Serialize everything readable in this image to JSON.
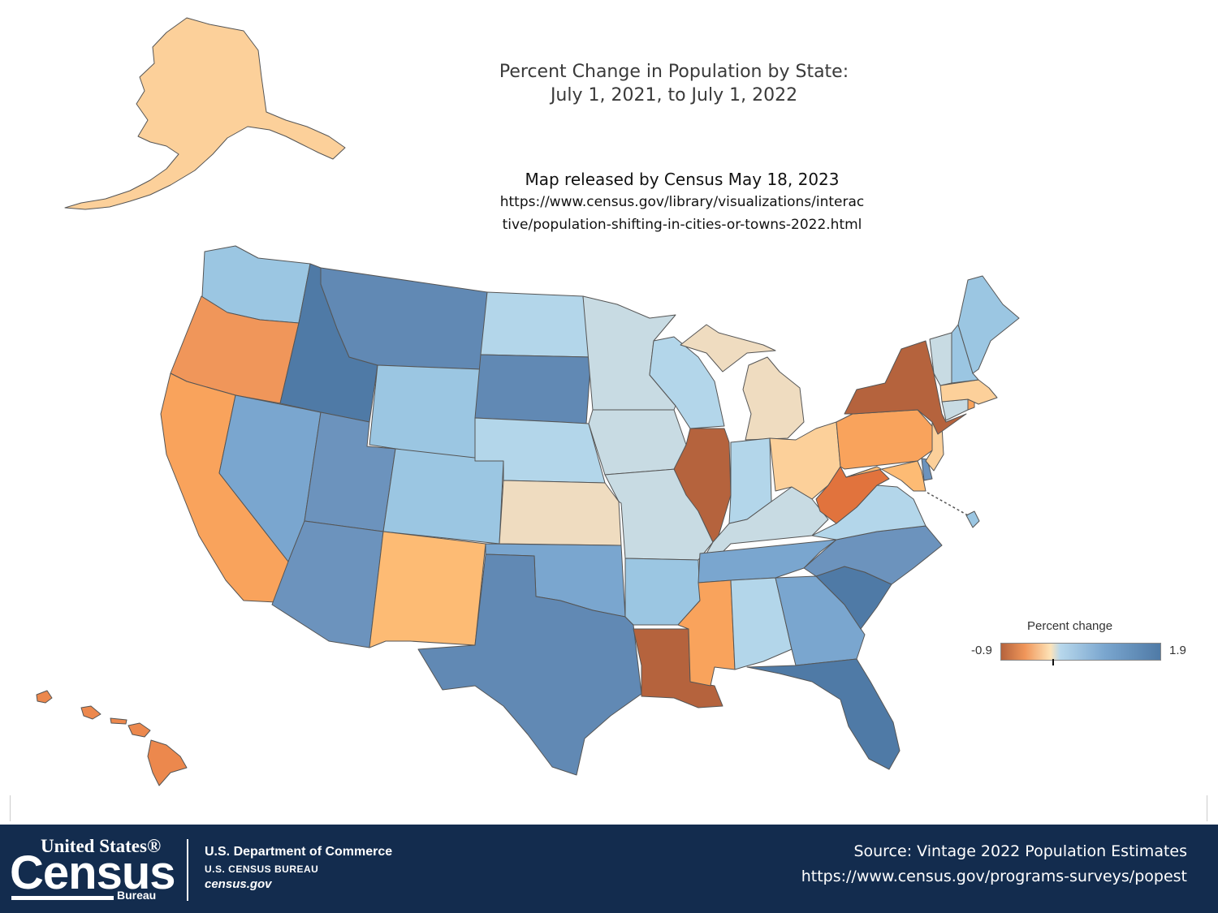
{
  "title": {
    "line1": "Percent Change in Population by State:",
    "line2": "July 1, 2021, to July 1, 2022"
  },
  "release": {
    "line1": "Map released by Census May 18, 2023",
    "line2": "https://www.census.gov/library/visualizations/interac",
    "line3": "tive/population-shifting-in-cities-or-towns-2022.html"
  },
  "legend": {
    "title": "Percent change",
    "min": "-0.9",
    "max": "1.9"
  },
  "footer": {
    "logo_top": "United States®",
    "logo_main": "Census",
    "logo_sub": "Bureau",
    "department": "U.S. Department of Commerce",
    "bureau": "U.S. CENSUS BUREAU",
    "site": "census.gov",
    "source_line1": "Source: Vintage 2022 Population Estimates",
    "source_line2": "https://www.census.gov/programs-surveys/popest"
  },
  "colors": {
    "border": "#555555",
    "footer_bg": "#132c4e",
    "strong_decline": "#b5633d",
    "decline": "#f0965a",
    "mild_decline": "#f9b870",
    "slight_decline": "#fcd09a",
    "near_zero": "#efdcc0",
    "flat": "#c8dbe3",
    "slight_growth": "#b3d6ea",
    "growth": "#9bc6e2",
    "moderate_growth": "#7aa6cf",
    "high_growth": "#6189b4",
    "strong_growth": "#4f7aa6"
  }
}
